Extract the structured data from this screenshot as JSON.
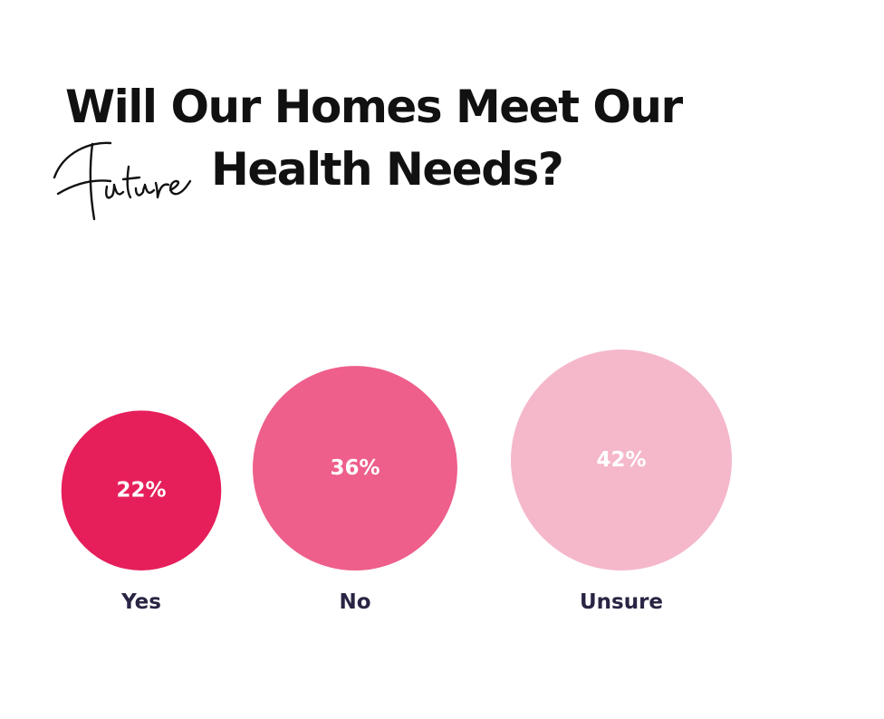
{
  "title": {
    "line1": "Will Our Homes Meet Our",
    "script_word": "Future",
    "line2": "Health Needs?"
  },
  "chart_data": {
    "type": "bubble",
    "categories": [
      "Yes",
      "No",
      "Unsure"
    ],
    "values": [
      22,
      36,
      42
    ],
    "value_labels": [
      "22%",
      "36%",
      "42%"
    ],
    "colors": [
      "#e61f5b",
      "#ee5f8b",
      "#f5b8cb"
    ],
    "label_color": "#2a2444"
  }
}
